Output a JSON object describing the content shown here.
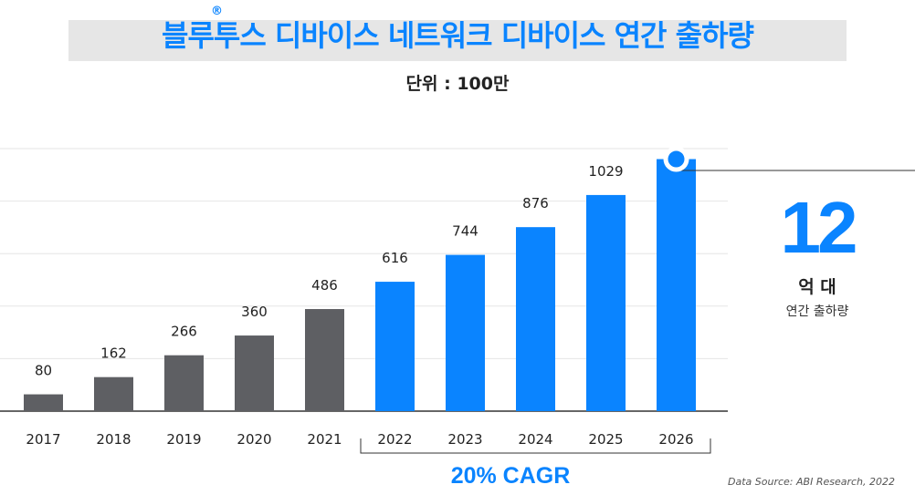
{
  "header": {
    "title": "블루투스 디바이스 네트워크 디바이스 연간 출하량",
    "registered_mark": "®",
    "unit_label": "단위 : 100만"
  },
  "chart_data": {
    "type": "bar",
    "title": "블루투스 디바이스 네트워크 디바이스 연간 출하량",
    "subtitle": "단위 : 100만",
    "categories": [
      "2017",
      "2018",
      "2019",
      "2020",
      "2021",
      "2022",
      "2023",
      "2024",
      "2025",
      "2026"
    ],
    "values": [
      80,
      162,
      266,
      360,
      486,
      616,
      744,
      876,
      1029,
      1200
    ],
    "data_labels": [
      "80",
      "162",
      "266",
      "360",
      "486",
      "616",
      "744",
      "876",
      "1029",
      ""
    ],
    "colors": [
      "#5e5f63",
      "#5e5f63",
      "#5e5f63",
      "#5e5f63",
      "#5e5f63",
      "#0a84ff",
      "#0a84ff",
      "#0a84ff",
      "#0a84ff",
      "#0a84ff"
    ],
    "ylim": [
      0,
      1250
    ],
    "grid": true
  },
  "callout": {
    "value": "12",
    "unit": "억 대",
    "caption": "연간 출하량"
  },
  "cagr_label": "20% CAGR",
  "source": "Data Source: ABI Research, 2022",
  "colors": {
    "accent": "#0a84ff",
    "historic": "#5e5f63",
    "grid": "#e6e6e6"
  }
}
